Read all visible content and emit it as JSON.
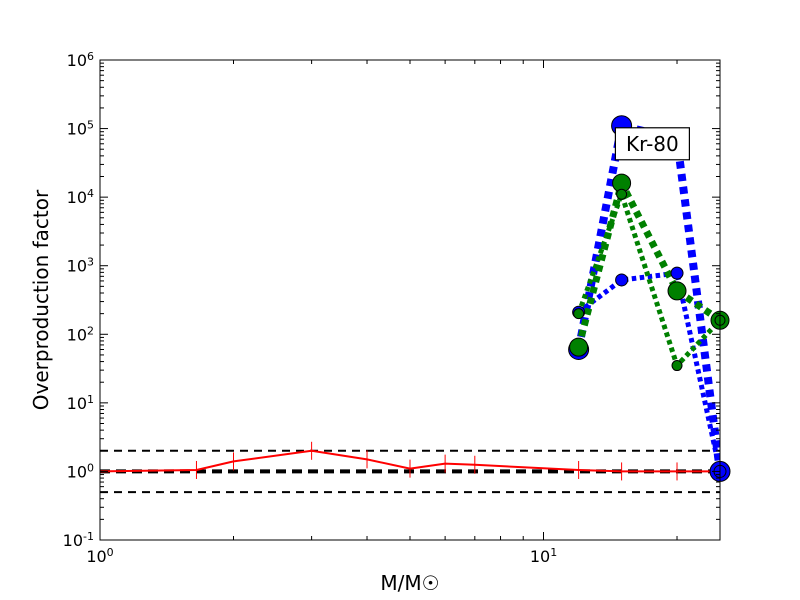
{
  "chart_data": {
    "type": "line",
    "xscale": "log",
    "yscale": "log",
    "xlim": [
      1,
      25
    ],
    "ylim": [
      0.1,
      1000000
    ],
    "xlabel": "M/M☉",
    "ylabel": "Overproduction factor",
    "x_ticks": [
      {
        "value": 1,
        "base": "10",
        "exp": "0"
      },
      {
        "value": 10,
        "base": "10",
        "exp": "1"
      }
    ],
    "y_ticks": [
      {
        "value": 0.1,
        "base": "10",
        "exp": "-1"
      },
      {
        "value": 1,
        "base": "10",
        "exp": "0"
      },
      {
        "value": 10,
        "base": "10",
        "exp": "1"
      },
      {
        "value": 100,
        "base": "10",
        "exp": "2"
      },
      {
        "value": 1000,
        "base": "10",
        "exp": "3"
      },
      {
        "value": 10000,
        "base": "10",
        "exp": "4"
      },
      {
        "value": 100000,
        "base": "10",
        "exp": "5"
      },
      {
        "value": 1000000,
        "base": "10",
        "exp": "6"
      }
    ],
    "annotation": {
      "text": "Kr-80",
      "x": 17.6,
      "y": 60000
    },
    "reference_lines": [
      {
        "y": 1,
        "style": "dashed-thick",
        "color": "#000000"
      },
      {
        "y": 2,
        "style": "dashed",
        "color": "#000000"
      },
      {
        "y": 0.5,
        "style": "dashed",
        "color": "#000000"
      }
    ],
    "series": [
      {
        "color": "#ff0000",
        "style": "solid",
        "width": 2,
        "marker": "tick",
        "x": [
          1,
          1.65,
          2,
          3,
          4,
          5,
          6,
          7,
          12,
          15,
          20,
          25
        ],
        "y": [
          1.0,
          1.05,
          1.4,
          2.0,
          1.5,
          1.1,
          1.3,
          1.25,
          1.05,
          1.0,
          1.0,
          1.0
        ]
      },
      {
        "color": "#0000ff",
        "style": "dotted",
        "width": 8,
        "marker": "circle",
        "marker_size": 10,
        "x": [
          12,
          15,
          20,
          25
        ],
        "y": [
          60,
          110000,
          70000,
          1.0
        ]
      },
      {
        "color": "#0000ff",
        "style": "dotted",
        "width": 5,
        "marker": "circle",
        "marker_size": 6,
        "x": [
          12,
          15,
          20,
          25
        ],
        "y": [
          210,
          620,
          780,
          1.0
        ]
      },
      {
        "color": "#008000",
        "style": "dotted",
        "width": 7,
        "marker": "circle",
        "marker_size": 9,
        "x": [
          12,
          15,
          20,
          25
        ],
        "y": [
          65,
          16000,
          430,
          160
        ]
      },
      {
        "color": "#008000",
        "style": "dotted",
        "width": 5,
        "marker": "circle",
        "marker_size": 5,
        "x": [
          12,
          15,
          20,
          25
        ],
        "y": [
          200,
          11000,
          35,
          160
        ]
      }
    ]
  }
}
